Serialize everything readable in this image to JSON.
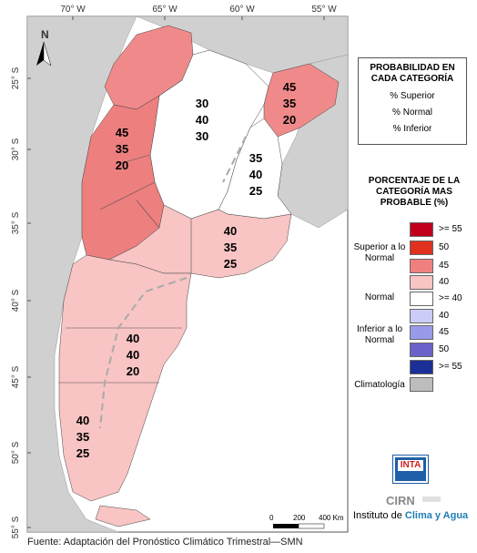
{
  "map": {
    "lon_ticks": [
      "70° W",
      "65° W",
      "60° W",
      "55° W"
    ],
    "lat_ticks": [
      "25° S",
      "30° S",
      "35° S",
      "40° S",
      "45° S",
      "50° S",
      "55° S"
    ],
    "north_label": "N",
    "regions": [
      {
        "name": "northwest-interior",
        "superior": "30",
        "normal": "40",
        "inferior": "30"
      },
      {
        "name": "northeast",
        "superior": "45",
        "normal": "35",
        "inferior": "20"
      },
      {
        "name": "cuyo",
        "superior": "45",
        "normal": "35",
        "inferior": "20"
      },
      {
        "name": "litoral-south",
        "superior": "35",
        "normal": "40",
        "inferior": "25"
      },
      {
        "name": "pampa-south",
        "superior": "40",
        "normal": "35",
        "inferior": "25"
      },
      {
        "name": "patagonia-north",
        "superior": "40",
        "normal": "40",
        "inferior": "20"
      },
      {
        "name": "patagonia-south",
        "superior": "40",
        "normal": "35",
        "inferior": "25"
      }
    ],
    "scale": {
      "zero": "0",
      "mid": "200",
      "max": "400 Km"
    }
  },
  "legend": {
    "probability": {
      "title": "PROBABILIDAD EN CADA CATEGORÍA",
      "lines": [
        "% Superior",
        "% Normal",
        "% Inferior"
      ]
    },
    "percentage": {
      "title": "PORCENTAJE DE LA CATEGORÍA MAS PROBABLE (%)",
      "groups": {
        "superior": "Superior a lo Normal",
        "normal": "Normal",
        "inferior": "Inferior a lo Normal",
        "climatologia": "Climatología"
      },
      "swatches": [
        {
          "label": ">= 55",
          "color": "#c0001c"
        },
        {
          "label": "50",
          "color": "#e0301e"
        },
        {
          "label": "45",
          "color": "#f08080"
        },
        {
          "label": "40",
          "color": "#f8c4c4"
        },
        {
          "label": ">= 40",
          "color": "#ffffff"
        },
        {
          "label": "40",
          "color": "#ccccf8"
        },
        {
          "label": "45",
          "color": "#9a9aea"
        },
        {
          "label": "50",
          "color": "#6a62c8"
        },
        {
          "label": ">= 55",
          "color": "#1c2f96"
        },
        {
          "label": "",
          "color": "#bdbdbd"
        }
      ]
    }
  },
  "logo": {
    "inta": "INTA",
    "cirn": "CIRN",
    "institute_prefix": "Instituto de",
    "institute_name": "Clima y Agua"
  },
  "footer": "Fuente: Adaptación del Pronóstico Climático Trimestral—SMN"
}
